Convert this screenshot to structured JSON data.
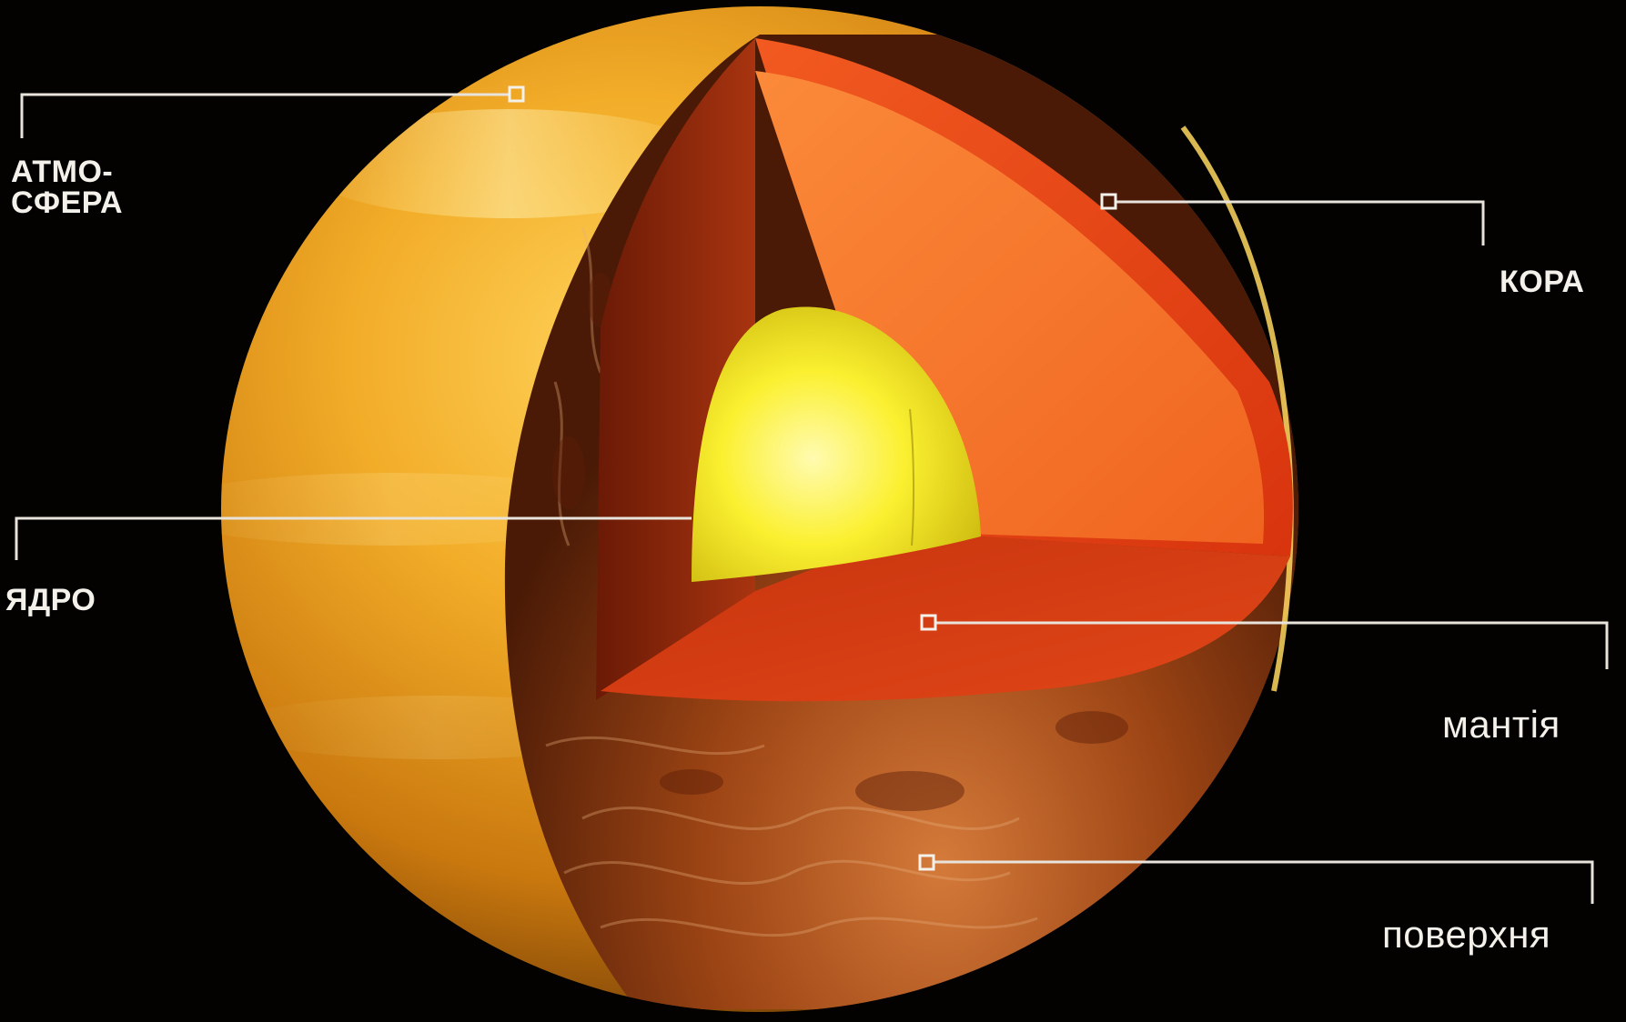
{
  "diagram": {
    "labels": {
      "atmosphere_line1": "АТМО-",
      "atmosphere_line2": "СФЕРА",
      "crust": "КОРА",
      "core": "ЯДРО",
      "mantle": "мантія",
      "surface": "поверхня"
    },
    "colors": {
      "background": "#030201",
      "atmosphere": "#e8a018",
      "crust": "#e8401a",
      "mantle": "#f06a22",
      "core": "#f4e620",
      "surface": "#a04a18",
      "leader_lines": "#e8e4dc"
    }
  }
}
